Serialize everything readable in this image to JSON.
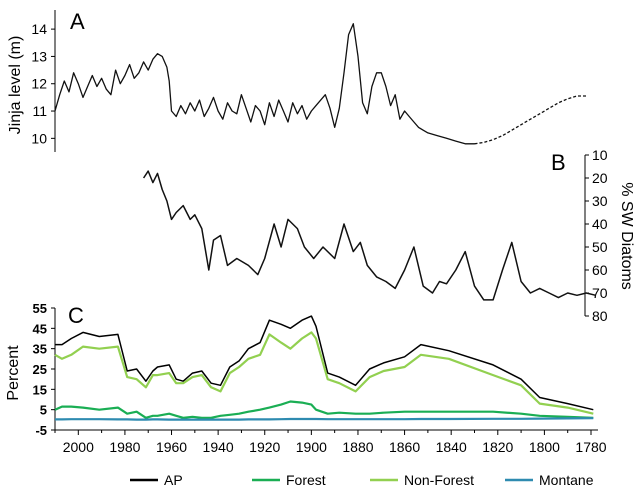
{
  "chart_data": [
    {
      "panel_label": "A",
      "type": "line",
      "ylabel": "Jinja level (m)",
      "x_axis": "shared-years-reversed",
      "ylim": [
        9.5,
        14.7
      ],
      "yticks": [
        "14",
        "13",
        "12",
        "11",
        "10"
      ],
      "series": [
        {
          "color": "#111111",
          "style": "solid",
          "x": [
            2010,
            2008,
            2006,
            2004,
            2002,
            2000,
            1998,
            1996,
            1994,
            1992,
            1990,
            1988,
            1986,
            1984,
            1982,
            1980,
            1978,
            1976,
            1974,
            1972,
            1970,
            1968,
            1966,
            1964,
            1962,
            1961,
            1960,
            1958,
            1956,
            1954,
            1952,
            1950,
            1948,
            1946,
            1944,
            1942,
            1940,
            1938,
            1936,
            1934,
            1932,
            1930,
            1928,
            1926,
            1924,
            1922,
            1920,
            1918,
            1916,
            1914,
            1912,
            1910,
            1908,
            1906,
            1904,
            1902,
            1900,
            1898,
            1896,
            1894,
            1892,
            1890,
            1888,
            1886,
            1884,
            1882,
            1880,
            1878,
            1876,
            1874,
            1872,
            1870,
            1868,
            1866,
            1864,
            1862,
            1860,
            1858,
            1856,
            1854,
            1852,
            1850,
            1846,
            1842,
            1838,
            1834,
            1830
          ],
          "y": [
            11.0,
            11.6,
            12.1,
            11.7,
            12.4,
            12.0,
            11.5,
            11.9,
            12.3,
            11.9,
            12.2,
            11.8,
            11.6,
            12.5,
            12.0,
            12.3,
            12.7,
            12.2,
            12.4,
            12.8,
            12.5,
            12.9,
            13.1,
            13.0,
            12.6,
            12.1,
            11.0,
            10.8,
            11.2,
            10.9,
            11.3,
            11.0,
            11.4,
            10.8,
            11.1,
            11.5,
            11.0,
            10.7,
            11.3,
            11.0,
            10.9,
            11.6,
            11.1,
            10.6,
            11.2,
            11.0,
            10.5,
            11.3,
            10.8,
            11.4,
            11.0,
            10.6,
            11.3,
            10.9,
            11.2,
            10.7,
            11.0,
            11.2,
            11.4,
            11.6,
            11.1,
            10.4,
            11.1,
            12.4,
            13.8,
            14.2,
            13.0,
            11.3,
            10.9,
            11.9,
            12.4,
            12.4,
            11.9,
            11.2,
            11.6,
            10.7,
            11.0,
            10.8,
            10.6,
            10.4,
            10.3,
            10.2,
            10.1,
            10.0,
            9.9,
            9.8,
            9.8
          ]
        },
        {
          "color": "#111111",
          "style": "dashed",
          "x": [
            1830,
            1826,
            1822,
            1818,
            1814,
            1810,
            1806,
            1802,
            1798,
            1794,
            1790,
            1786,
            1782
          ],
          "y": [
            9.8,
            9.85,
            9.95,
            10.1,
            10.3,
            10.5,
            10.7,
            10.9,
            11.1,
            11.3,
            11.45,
            11.55,
            11.55
          ]
        }
      ]
    },
    {
      "panel_label": "B",
      "type": "line",
      "ylabel": "% SW Diatoms",
      "x_axis": "shared-years-reversed",
      "ylim": [
        10,
        80
      ],
      "y_inverted": true,
      "yticks": [
        "10",
        "20",
        "30",
        "40",
        "50",
        "60",
        "70",
        "80"
      ],
      "series": [
        {
          "color": "#111111",
          "x": [
            1972,
            1970,
            1968,
            1966,
            1964,
            1962,
            1960,
            1958,
            1955,
            1952,
            1950,
            1947,
            1944,
            1942,
            1939,
            1936,
            1932,
            1927,
            1923,
            1920,
            1916,
            1913,
            1910,
            1906,
            1903,
            1899,
            1895,
            1890,
            1886,
            1882,
            1879,
            1876,
            1872,
            1868,
            1864,
            1860,
            1856,
            1852,
            1848,
            1845,
            1842,
            1838,
            1834,
            1830,
            1826,
            1822,
            1818,
            1814,
            1810,
            1806,
            1802,
            1798,
            1794,
            1790,
            1786,
            1782,
            1778
          ],
          "y": [
            20,
            17,
            22,
            18,
            25,
            30,
            38,
            35,
            32,
            38,
            36,
            42,
            60,
            47,
            45,
            58,
            55,
            58,
            62,
            55,
            40,
            50,
            38,
            42,
            50,
            55,
            50,
            55,
            40,
            52,
            48,
            58,
            63,
            65,
            68,
            60,
            50,
            67,
            70,
            65,
            66,
            60,
            52,
            67,
            73,
            73,
            60,
            48,
            65,
            70,
            68,
            70,
            72,
            70,
            71,
            70,
            71
          ]
        }
      ]
    },
    {
      "panel_label": "C",
      "type": "line",
      "ylabel": "Percent",
      "xlabel": "",
      "ylim": [
        -5,
        55
      ],
      "yticks": [
        "55",
        "45",
        "35",
        "25",
        "15",
        "5",
        "-5"
      ],
      "xlim": [
        2010,
        1777
      ],
      "xticks": [
        "2000",
        "1980",
        "1960",
        "1940",
        "1920",
        "1900",
        "1880",
        "1860",
        "1840",
        "1820",
        "1800",
        "1780"
      ],
      "legend": "bottom",
      "x": [
        2010,
        2007,
        2003,
        1998,
        1991,
        1983,
        1979,
        1975,
        1971,
        1968,
        1966,
        1961,
        1958,
        1955,
        1951,
        1947,
        1943,
        1939,
        1935,
        1931,
        1927,
        1922,
        1918,
        1913,
        1909,
        1904,
        1900,
        1898,
        1893,
        1888,
        1881,
        1875,
        1869,
        1860,
        1853,
        1841,
        1822,
        1810,
        1802,
        1790,
        1779
      ],
      "series": [
        {
          "name": "AP",
          "color": "#000000",
          "values": [
            37,
            37,
            40,
            43,
            41,
            42,
            24,
            25,
            19,
            24,
            26,
            27,
            20,
            19,
            23,
            24,
            18,
            17,
            26,
            29,
            35,
            38,
            49,
            47,
            45,
            49,
            51,
            46,
            23,
            21,
            17,
            25,
            28,
            31,
            37,
            34,
            27,
            20,
            11,
            8,
            5
          ]
        },
        {
          "name": "Forest",
          "color": "#1aae54",
          "values": [
            5,
            6.5,
            6.5,
            6,
            5,
            6,
            3,
            4,
            1,
            2,
            2,
            3,
            2,
            1,
            1.5,
            1,
            1,
            2,
            2.5,
            3,
            4,
            5,
            6,
            7.5,
            9,
            8.5,
            7.5,
            5,
            3,
            3.5,
            3,
            3,
            3.5,
            4,
            4,
            4,
            4,
            3,
            2,
            1.5,
            1
          ]
        },
        {
          "name": "Non-Forest",
          "color": "#92d050",
          "values": [
            32,
            30,
            32,
            36,
            35,
            36,
            21,
            20,
            16,
            22,
            22,
            23,
            18,
            18,
            21,
            22,
            16,
            14,
            23,
            26,
            30,
            32,
            42,
            38,
            35,
            40,
            43,
            40,
            20,
            18,
            14,
            21,
            24,
            26,
            32,
            30,
            22,
            17,
            8,
            6,
            3
          ]
        },
        {
          "name": "Montane",
          "color": "#2e8bb0",
          "values": [
            0.2,
            0.2,
            0.3,
            0.3,
            0.3,
            0.2,
            0.2,
            0.1,
            0.1,
            0.2,
            0.2,
            0.1,
            0.1,
            0.1,
            0.1,
            0.1,
            0.1,
            0.1,
            0.1,
            0.1,
            0.2,
            0.2,
            0.2,
            0.3,
            0.4,
            0.4,
            0.4,
            0.4,
            0.3,
            0.3,
            0.3,
            0.3,
            0.3,
            0.3,
            0.4,
            0.4,
            0.5,
            0.5,
            0.6,
            0.7,
            0.8
          ]
        }
      ]
    }
  ]
}
